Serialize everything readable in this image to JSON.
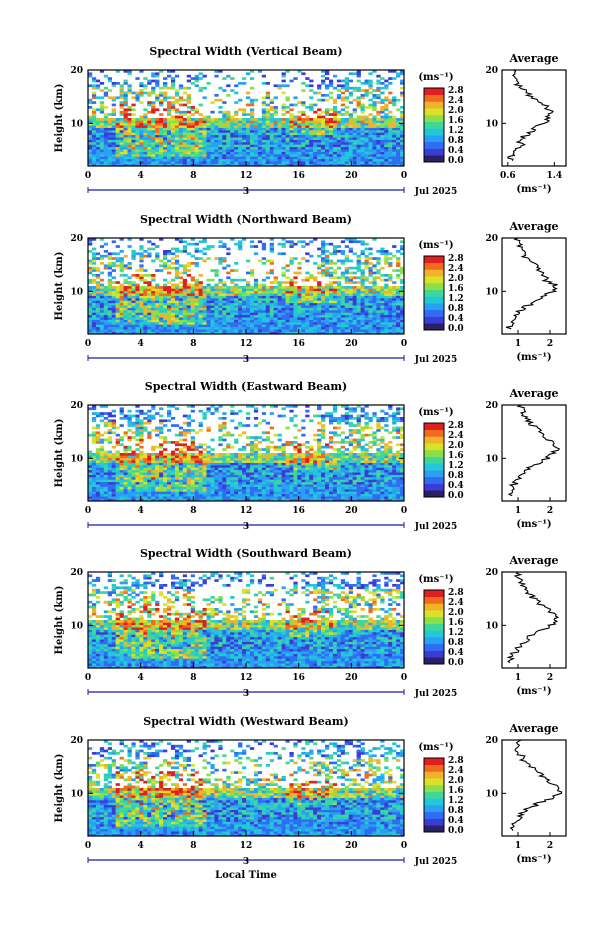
{
  "chart_data": [
    {
      "type": "heatmap",
      "title": "Spectral Width (Vertical Beam)",
      "ylabel": "Height (km)",
      "xlabel": "",
      "xticks": [
        "0",
        "4",
        "8",
        "12",
        "16",
        "20",
        "0"
      ],
      "yticks": [
        "10",
        "20"
      ],
      "xlim": [
        0,
        24
      ],
      "ylim": [
        2,
        20
      ],
      "date_label": "Jul 2025",
      "day_label": "3",
      "colorbar": {
        "unit": "(ms⁻¹)",
        "ticks": [
          "2.8",
          "2.4",
          "2.0",
          "1.6",
          "1.2",
          "0.8",
          "0.4",
          "0.0"
        ]
      },
      "profile": {
        "title": "Average",
        "xticks": [
          "0.6",
          "1.4"
        ],
        "xlim": [
          0.5,
          1.6
        ],
        "xlabel": "(ms⁻¹)",
        "yticks": [
          "10",
          "20"
        ],
        "heights": [
          3,
          4,
          5,
          6,
          7,
          8,
          9,
          10,
          11,
          12,
          13,
          14,
          15,
          16,
          17,
          18,
          19,
          20
        ],
        "values": [
          0.62,
          0.66,
          0.72,
          0.85,
          0.8,
          0.95,
          1.05,
          1.2,
          1.3,
          1.35,
          1.28,
          1.15,
          1.0,
          0.9,
          0.8,
          0.75,
          0.7,
          0.7
        ]
      }
    },
    {
      "type": "heatmap",
      "title": "Spectral Width (Northward Beam)",
      "ylabel": "Height (km)",
      "xlabel": "",
      "xticks": [
        "0",
        "4",
        "8",
        "12",
        "16",
        "20",
        "0"
      ],
      "yticks": [
        "10",
        "20"
      ],
      "xlim": [
        0,
        24
      ],
      "ylim": [
        2,
        20
      ],
      "date_label": "Jul 2025",
      "day_label": "3",
      "colorbar": {
        "unit": "(ms⁻¹)",
        "ticks": [
          "2.8",
          "2.4",
          "2.0",
          "1.6",
          "1.2",
          "0.8",
          "0.4",
          "0.0"
        ]
      },
      "profile": {
        "title": "Average",
        "xticks": [
          "1",
          "2"
        ],
        "xlim": [
          0.5,
          2.5
        ],
        "xlabel": "(ms⁻¹)",
        "yticks": [
          "10",
          "20"
        ],
        "heights": [
          3,
          4,
          5,
          6,
          7,
          8,
          9,
          10,
          11,
          12,
          13,
          14,
          15,
          16,
          17,
          18,
          19,
          20
        ],
        "values": [
          0.7,
          0.8,
          0.85,
          1.0,
          1.2,
          1.5,
          1.8,
          2.1,
          2.2,
          1.9,
          1.8,
          1.6,
          1.5,
          1.3,
          1.2,
          1.1,
          1.0,
          1.0
        ]
      }
    },
    {
      "type": "heatmap",
      "title": "Spectral Width (Eastward Beam)",
      "ylabel": "Height (km)",
      "xlabel": "",
      "xticks": [
        "0",
        "4",
        "8",
        "12",
        "16",
        "20",
        "0"
      ],
      "yticks": [
        "10",
        "20"
      ],
      "xlim": [
        0,
        24
      ],
      "ylim": [
        2,
        20
      ],
      "date_label": "Jul 2025",
      "day_label": "3",
      "colorbar": {
        "unit": "(ms⁻¹)",
        "ticks": [
          "2.8",
          "2.4",
          "2.0",
          "1.6",
          "1.2",
          "0.8",
          "0.4",
          "0.0"
        ]
      },
      "profile": {
        "title": "Average",
        "xticks": [
          "1",
          "2"
        ],
        "xlim": [
          0.5,
          2.5
        ],
        "xlabel": "(ms⁻¹)",
        "yticks": [
          "10",
          "20"
        ],
        "heights": [
          3,
          4,
          5,
          6,
          7,
          8,
          9,
          10,
          11,
          12,
          13,
          14,
          15,
          16,
          17,
          18,
          19,
          20
        ],
        "values": [
          0.75,
          0.9,
          0.85,
          1.0,
          1.1,
          1.3,
          1.6,
          1.9,
          2.1,
          2.3,
          2.0,
          1.9,
          1.7,
          1.5,
          1.3,
          1.2,
          1.1,
          1.1
        ]
      }
    },
    {
      "type": "heatmap",
      "title": "Spectral Width (Southward Beam)",
      "ylabel": "Height (km)",
      "xlabel": "",
      "xticks": [
        "0",
        "4",
        "8",
        "12",
        "16",
        "20",
        "0"
      ],
      "yticks": [
        "10",
        "20"
      ],
      "xlim": [
        0,
        24
      ],
      "ylim": [
        2,
        20
      ],
      "date_label": "Jul 2025",
      "day_label": "3",
      "colorbar": {
        "unit": "(ms⁻¹)",
        "ticks": [
          "2.8",
          "2.4",
          "2.0",
          "1.6",
          "1.2",
          "0.8",
          "0.4",
          "0.0"
        ]
      },
      "profile": {
        "title": "Average",
        "xticks": [
          "1",
          "2"
        ],
        "xlim": [
          0.5,
          2.5
        ],
        "xlabel": "(ms⁻¹)",
        "yticks": [
          "10",
          "20"
        ],
        "heights": [
          3,
          4,
          5,
          6,
          7,
          8,
          9,
          10,
          11,
          12,
          13,
          14,
          15,
          16,
          17,
          18,
          19,
          20
        ],
        "values": [
          0.7,
          0.8,
          0.9,
          1.0,
          1.2,
          1.4,
          1.7,
          2.0,
          2.2,
          2.1,
          1.9,
          1.7,
          1.5,
          1.3,
          1.2,
          1.1,
          1.0,
          1.0
        ]
      }
    },
    {
      "type": "heatmap",
      "title": "Spectral Width (Westward Beam)",
      "ylabel": "Height (km)",
      "xlabel": "Local Time",
      "xticks": [
        "0",
        "4",
        "8",
        "12",
        "16",
        "20",
        "0"
      ],
      "yticks": [
        "10",
        "20"
      ],
      "xlim": [
        0,
        24
      ],
      "ylim": [
        2,
        20
      ],
      "date_label": "Jul 2025",
      "day_label": "3",
      "colorbar": {
        "unit": "(ms⁻¹)",
        "ticks": [
          "2.8",
          "2.4",
          "2.0",
          "1.6",
          "1.2",
          "0.8",
          "0.4",
          "0.0"
        ]
      },
      "profile": {
        "title": "Average",
        "xticks": [
          "1",
          "2"
        ],
        "xlim": [
          0.5,
          2.5
        ],
        "xlabel": "(ms⁻¹)",
        "yticks": [
          "10",
          "20"
        ],
        "heights": [
          3,
          4,
          5,
          6,
          7,
          8,
          9,
          10,
          11,
          12,
          13,
          14,
          15,
          16,
          17,
          18,
          19,
          20
        ],
        "values": [
          0.8,
          0.9,
          1.0,
          1.1,
          1.3,
          1.6,
          2.0,
          2.3,
          2.2,
          2.0,
          1.8,
          1.6,
          1.4,
          1.2,
          1.1,
          1.0,
          1.0,
          1.1
        ]
      }
    }
  ],
  "colors": {
    "scale": [
      "#2b1f66",
      "#3b3bd6",
      "#2f6cf2",
      "#2aa0f2",
      "#22c8d8",
      "#3fd69a",
      "#8be04a",
      "#d8e22a",
      "#f4b22a",
      "#f06a20",
      "#e02020"
    ]
  }
}
